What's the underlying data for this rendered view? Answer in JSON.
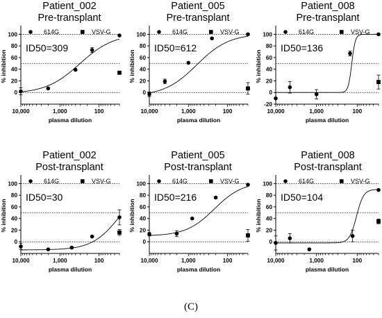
{
  "caption": "(C)",
  "chart_data": [
    {
      "type": "scatter",
      "title": "Patient_002",
      "subtitle": "Pre-transplant",
      "annotation": "ID50=309",
      "xlabel": "plasma dilution",
      "ylabel": "% inhibition",
      "x_scale": "log",
      "x_reversed": true,
      "xlim": [
        10000,
        30
      ],
      "ylim": [
        -20,
        110
      ],
      "xticks": [
        "10,000",
        "1,000",
        "100"
      ],
      "yticks": [
        0,
        20,
        40,
        60,
        80,
        100
      ],
      "reference_lines": [
        0,
        50,
        100
      ],
      "legend": [
        "614G",
        "VSV-G"
      ],
      "series": [
        {
          "name": "614G",
          "marker": "circle",
          "x": [
            10000,
            2000,
            400,
            150,
            30
          ],
          "y": [
            2,
            7,
            39,
            73,
            98
          ],
          "err": [
            6,
            0,
            0,
            4,
            0
          ]
        },
        {
          "name": "VSV-G",
          "marker": "square",
          "x": [
            30
          ],
          "y": [
            34
          ],
          "err": [
            0
          ]
        }
      ],
      "fit": {
        "id50": 309,
        "bottom": -2,
        "top": 101,
        "hill": 1.0
      }
    },
    {
      "type": "scatter",
      "title": "Patient_005",
      "subtitle": "Pre-transplant",
      "annotation": "ID50=612",
      "xlabel": "plasma dilution",
      "ylabel": "% inhibition",
      "x_scale": "log",
      "x_reversed": true,
      "xlim": [
        10000,
        30
      ],
      "ylim": [
        -20,
        110
      ],
      "xticks": [
        "10,000",
        "1,000",
        "100"
      ],
      "yticks": [
        0,
        20,
        40,
        60,
        80,
        100
      ],
      "reference_lines": [
        0,
        50,
        100
      ],
      "legend": [
        "614G",
        "VSV-G"
      ],
      "series": [
        {
          "name": "614G",
          "marker": "circle",
          "x": [
            10000,
            4000,
            1000,
            250,
            30
          ],
          "y": [
            -3,
            19,
            51,
            93,
            100
          ],
          "err": [
            4,
            4,
            0,
            0,
            0
          ]
        },
        {
          "name": "VSV-G",
          "marker": "square",
          "x": [
            30
          ],
          "y": [
            7
          ],
          "err": [
            10
          ]
        }
      ],
      "fit": {
        "id50": 612,
        "bottom": -6,
        "top": 101,
        "hill": 1.05
      }
    },
    {
      "type": "scatter",
      "title": "Patient_008",
      "subtitle": "Pre-transplant",
      "annotation": "ID50=136",
      "xlabel": "plasma dilution",
      "ylabel": "% inhibition",
      "x_scale": "log",
      "x_reversed": true,
      "xlim": [
        10000,
        30
      ],
      "ylim": [
        -20,
        110
      ],
      "xticks": [
        "10,000",
        "1,000",
        "100"
      ],
      "yticks": [
        -20,
        0,
        20,
        40,
        60,
        80,
        100
      ],
      "reference_lines": [
        0,
        50,
        100
      ],
      "legend": [
        "614G",
        "VSV-G"
      ],
      "series": [
        {
          "name": "614G",
          "marker": "circle",
          "x": [
            10000,
            4500,
            1000,
            150,
            30
          ],
          "y": [
            -10,
            9,
            -3,
            67,
            100
          ],
          "err": [
            0,
            10,
            8,
            4,
            0
          ]
        },
        {
          "name": "VSV-G",
          "marker": "square",
          "x": [
            30
          ],
          "y": [
            18
          ],
          "err": [
            12
          ]
        }
      ],
      "fit": {
        "id50": 136,
        "bottom": 0,
        "top": 100,
        "hill": 10
      }
    },
    {
      "type": "scatter",
      "title": "Patient_002",
      "subtitle": "Post-transplant",
      "annotation": "ID50=30",
      "xlabel": "plasma dilution",
      "ylabel": "% inhibition",
      "x_scale": "log",
      "x_reversed": true,
      "xlim": [
        10000,
        30
      ],
      "ylim": [
        -20,
        110
      ],
      "xticks": [
        "10,000",
        "1,000",
        "100"
      ],
      "yticks": [
        0,
        20,
        40,
        60,
        80,
        100
      ],
      "reference_lines": [
        0,
        50,
        100
      ],
      "legend": [
        "614G",
        "VSV-G"
      ],
      "series": [
        {
          "name": "614G",
          "marker": "circle",
          "x": [
            10000,
            2000,
            500,
            150,
            30
          ],
          "y": [
            -8,
            -13,
            -10,
            9,
            42
          ],
          "err": [
            5,
            0,
            0,
            0,
            13
          ]
        },
        {
          "name": "VSV-G",
          "marker": "square",
          "x": [
            30
          ],
          "y": [
            16
          ],
          "err": [
            5
          ]
        }
      ],
      "fit": {
        "id50": 30,
        "bottom": -14,
        "top": 100,
        "hill": 1.25
      }
    },
    {
      "type": "scatter",
      "title": "Patient_005",
      "subtitle": "Post-transplant",
      "annotation": "ID50=216",
      "xlabel": "plasma dilution",
      "ylabel": "% inhibition",
      "x_scale": "log",
      "x_reversed": true,
      "xlim": [
        10000,
        30
      ],
      "ylim": [
        -20,
        110
      ],
      "xticks": [
        "10,000",
        "1,000",
        "100"
      ],
      "yticks": [
        0,
        20,
        40,
        60,
        80,
        100
      ],
      "reference_lines": [
        0,
        50,
        100
      ],
      "legend": [
        "614G",
        "VSV-G"
      ],
      "series": [
        {
          "name": "614G",
          "marker": "circle",
          "x": [
            10000,
            2000,
            800,
            200,
            30
          ],
          "y": [
            13,
            14,
            40,
            76,
            98
          ],
          "err": [
            3,
            5,
            0,
            0,
            0
          ]
        },
        {
          "name": "VSV-G",
          "marker": "square",
          "x": [
            30
          ],
          "y": [
            11
          ],
          "err": [
            10
          ]
        }
      ],
      "fit": {
        "id50": 216,
        "bottom": 10,
        "top": 103,
        "hill": 1.2
      }
    },
    {
      "type": "scatter",
      "title": "Patient_008",
      "subtitle": "Post-transplant",
      "annotation": "ID50=104",
      "xlabel": "plasma dilution",
      "ylabel": "% inhibition",
      "x_scale": "log",
      "x_reversed": true,
      "xlim": [
        10000,
        30
      ],
      "ylim": [
        -20,
        110
      ],
      "xticks": [
        "10,000",
        "1,000",
        "100"
      ],
      "yticks": [
        0,
        20,
        40,
        60,
        80,
        100
      ],
      "reference_lines": [
        0,
        50,
        100
      ],
      "legend": [
        "614G",
        "VSV-G"
      ],
      "series": [
        {
          "name": "614G",
          "marker": "circle",
          "x": [
            10000,
            4500,
            1500,
            130,
            30
          ],
          "y": [
            -2,
            6,
            -13,
            10,
            89
          ],
          "err": [
            12,
            8,
            0,
            10,
            0
          ]
        },
        {
          "name": "VSV-G",
          "marker": "square",
          "x": [
            30
          ],
          "y": [
            35
          ],
          "err": [
            4
          ]
        }
      ],
      "fit": {
        "id50": 104,
        "bottom": -2,
        "top": 90,
        "hill": 5
      }
    }
  ]
}
